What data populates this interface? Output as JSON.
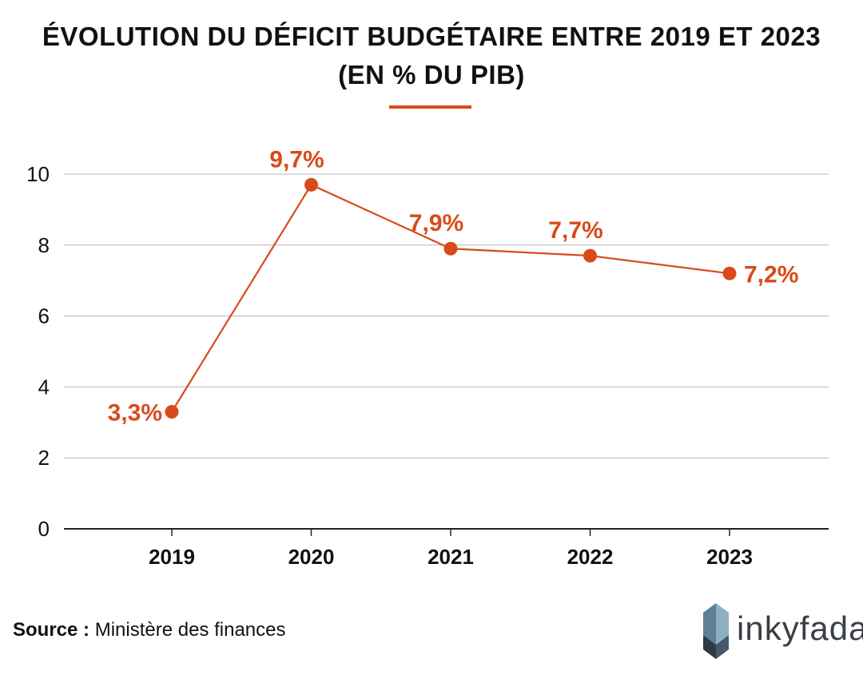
{
  "title": {
    "line1": "ÉVOLUTION DU DÉFICIT BUDGÉTAIRE ENTRE 2019 ET 2023",
    "line2": "(EN % DU PIB)"
  },
  "colors": {
    "accent": "#d94a1a",
    "grid": "#b5b5b5",
    "axis": "#222222"
  },
  "chart_data": {
    "type": "line",
    "title": "ÉVOLUTION DU DÉFICIT BUDGÉTAIRE ENTRE 2019 ET 2023 (EN % DU PIB)",
    "xlabel": "",
    "ylabel": "",
    "categories": [
      "2019",
      "2020",
      "2021",
      "2022",
      "2023"
    ],
    "series": [
      {
        "values": [
          3.3,
          9.7,
          7.9,
          7.7,
          7.2
        ],
        "labels": [
          "3,3%",
          "9,7%",
          "7,9%",
          "7,7%",
          "7,2%"
        ]
      }
    ],
    "ylim": [
      0,
      10
    ],
    "yticks": [
      "0",
      "2",
      "4",
      "6",
      "8",
      "10"
    ],
    "grid": true,
    "legend": "none"
  },
  "source": {
    "label": "Source :",
    "text": "Ministère des finances"
  },
  "brand": {
    "name": "inkyfada",
    "icon": "inkyfada-logo-icon"
  }
}
